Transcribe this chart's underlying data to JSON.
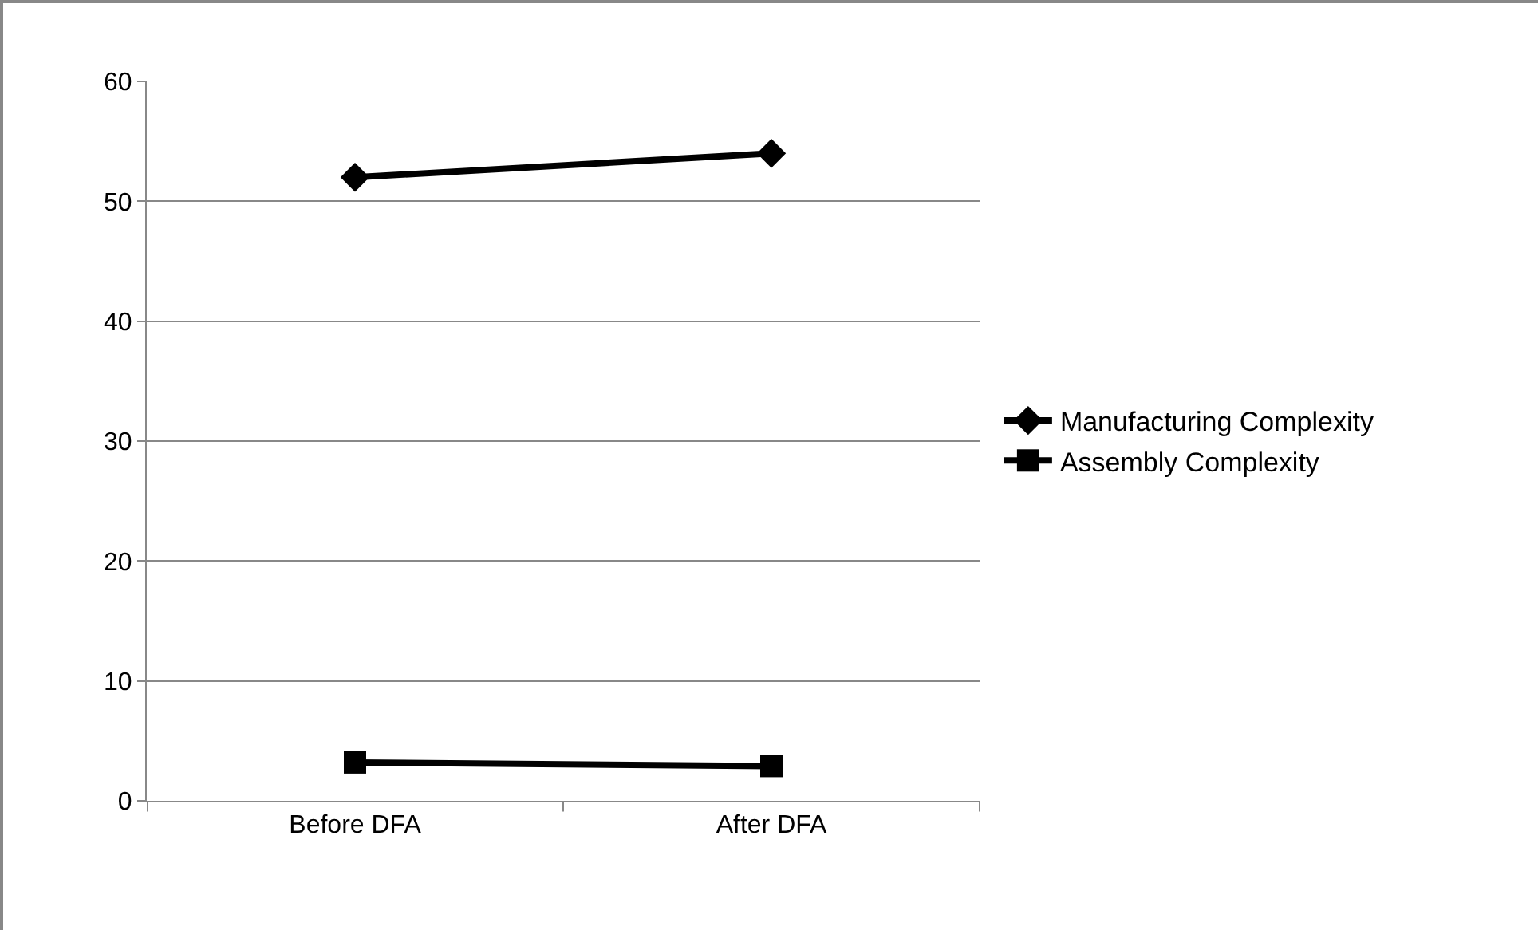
{
  "chart_data": {
    "type": "line",
    "categories": [
      "Before DFA",
      "After DFA"
    ],
    "series": [
      {
        "name": "Manufacturing Complexity",
        "color": "#000000",
        "marker": "diamond",
        "values": [
          52,
          54
        ]
      },
      {
        "name": "Assembly Complexity",
        "color": "#000000",
        "marker": "square",
        "values": [
          3.2,
          2.9
        ]
      }
    ],
    "ylim": [
      0,
      60
    ],
    "yticks": [
      0,
      10,
      20,
      30,
      40,
      50,
      60
    ],
    "grid": "y",
    "legend": "right",
    "line_style": "solid"
  }
}
